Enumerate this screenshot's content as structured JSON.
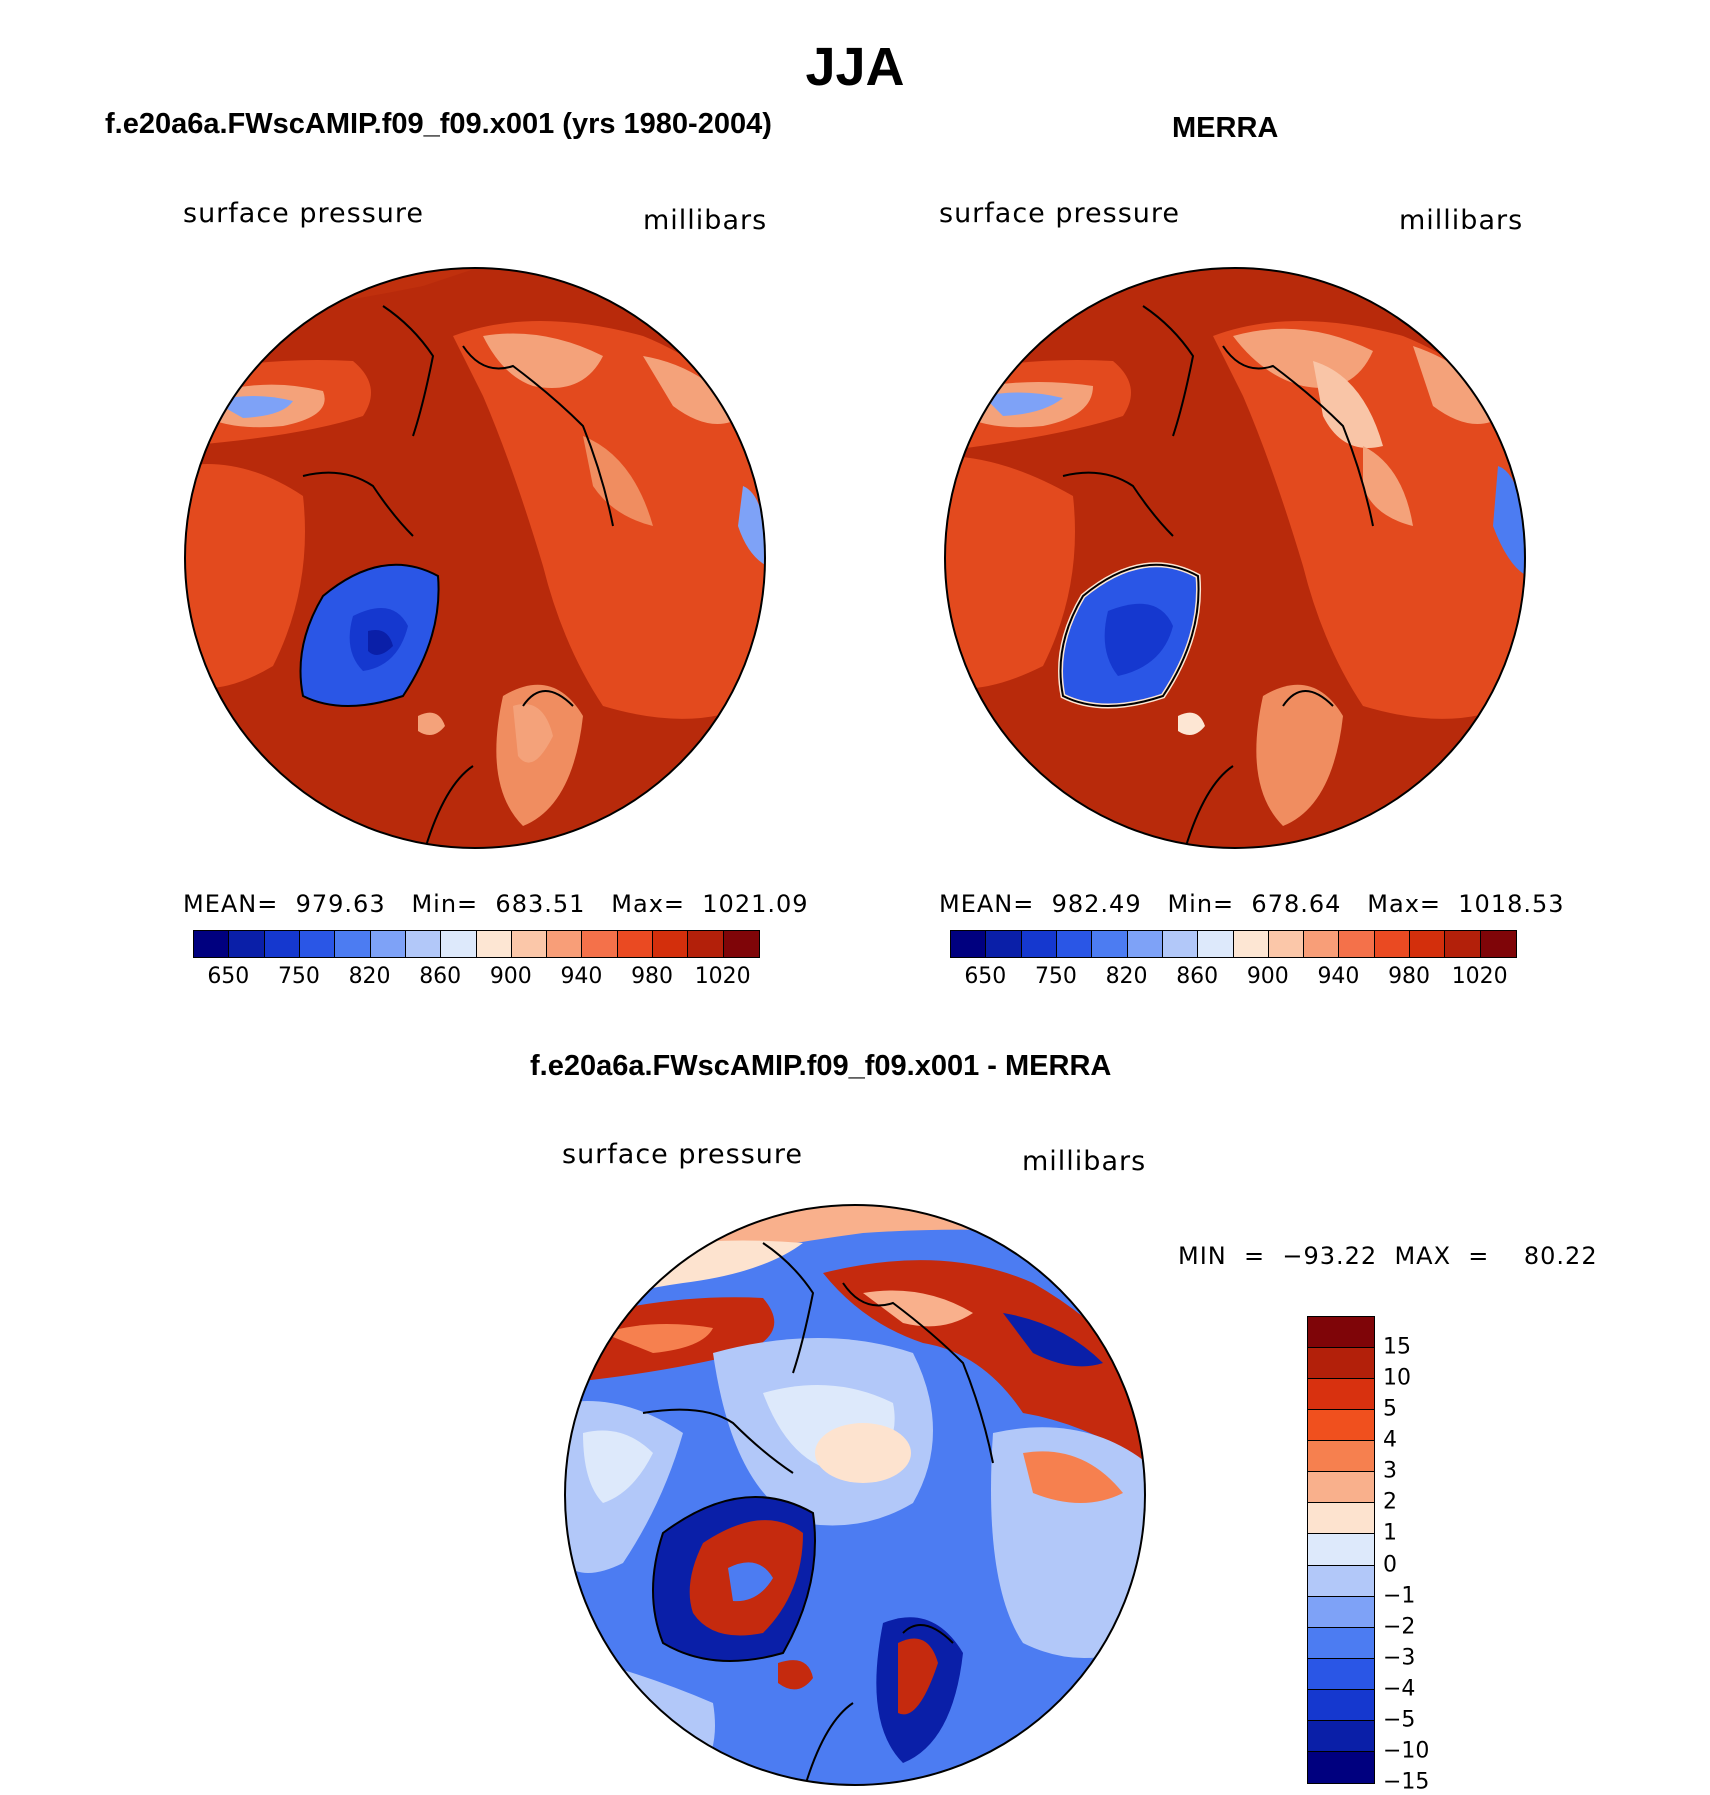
{
  "title": "JJA",
  "panels": [
    {
      "title": "f.e20a6a.FWscAMIP.f09_f09.x001 (yrs 1980-2004)",
      "field_label": "surface pressure",
      "unit_label": "millibars",
      "stats": "MEAN=  979.63   Min=  683.51   Max=  1021.09",
      "map_icon": "north-polar-stereographic-map"
    },
    {
      "title": "MERRA",
      "field_label": "surface pressure",
      "unit_label": "millibars",
      "stats": "MEAN=  982.49   Min=  678.64   Max=  1018.53",
      "map_icon": "north-polar-stereographic-map"
    },
    {
      "title": "f.e20a6a.FWscAMIP.f09_f09.x001 - MERRA",
      "field_label": "surface pressure",
      "unit_label": "millibars",
      "stats": "MIN  =  −93.22  MAX  =    80.22",
      "map_icon": "north-polar-stereographic-difference-map"
    }
  ],
  "colorbar_abs": {
    "colors": [
      "#00007f",
      "#0a1fa8",
      "#1538cf",
      "#2a56e6",
      "#4c7cf2",
      "#7ea2f7",
      "#b2c8f9",
      "#dde9fb",
      "#fde6d3",
      "#fbc7a9",
      "#f89e78",
      "#f4714a",
      "#ea4a22",
      "#d32f0c",
      "#b3200a",
      "#7f0508"
    ],
    "tick_labels": [
      "650",
      "750",
      "820",
      "860",
      "900",
      "940",
      "980",
      "1020"
    ]
  },
  "colorbar_diff": {
    "colors": [
      "#7f0508",
      "#b3200a",
      "#d8310f",
      "#f0501e",
      "#f6804f",
      "#f9b08c",
      "#fde3cf",
      "#dde9fb",
      "#b2c8f9",
      "#7ea2f7",
      "#4c7cf2",
      "#2a56e6",
      "#1538cf",
      "#0a1fa8",
      "#00007f"
    ],
    "tick_labels": [
      "15",
      "10",
      "5",
      "4",
      "3",
      "2",
      "1",
      "0",
      "−1",
      "−2",
      "−3",
      "−4",
      "−5",
      "−10",
      "−15"
    ]
  },
  "map_colors": {
    "abs_dominant": "#b82a0b",
    "abs_mid": "#e34a1e",
    "abs_light": "#f4a27a",
    "abs_low": "#2a56e6",
    "diff_ocean": "#4c7cf2",
    "diff_light": "#b2c8f9",
    "diff_red": "#c52a0e",
    "diff_dark": "#0a1fa8"
  }
}
